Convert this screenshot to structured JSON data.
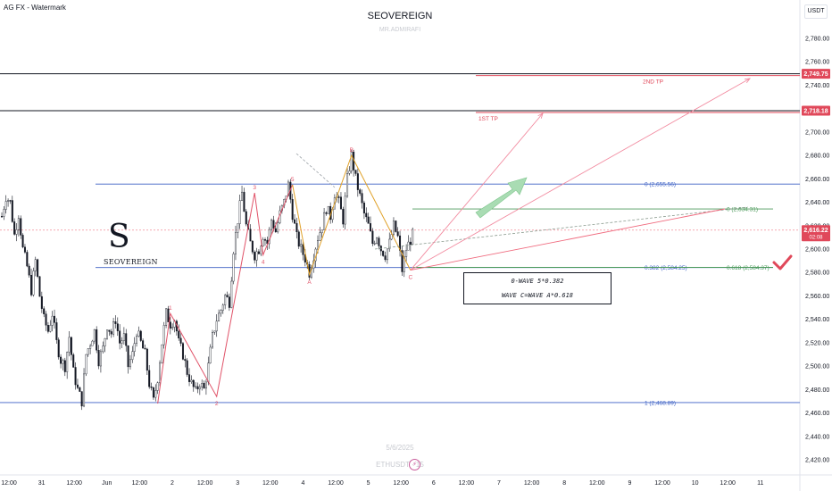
{
  "header": {
    "source": "AG FX - Watermark",
    "title": "SEOVEREIGN",
    "subtitle": "MR.ADMIRAFI",
    "currency": "USDT"
  },
  "watermark": {
    "date": "5/6/2025",
    "symbol": "ETHUSDT · 15"
  },
  "logo": {
    "mark": "S",
    "text": "SEOVEREIGN"
  },
  "note_box": {
    "line1": "0-WAVE 5*0.382",
    "line2": "WAVE C=WAVE A*0.618"
  },
  "colors": {
    "candle": "#131722",
    "blue_level": "#3b5fc4",
    "green_level": "#4c9a5b",
    "red_target": "#e0485a",
    "pink_arrow": "#f28ba0",
    "wave_line": "#e05268",
    "orange_line": "#e0a128"
  },
  "chart_data": {
    "type": "candlestick",
    "y_ticks": [
      "2,780.00",
      "2,760.00",
      "2,740.00",
      "2,720.00",
      "2,700.00",
      "2,680.00",
      "2,660.00",
      "2,640.00",
      "2,620.00",
      "2,600.00",
      "2,580.00",
      "2,560.00",
      "2,540.00",
      "2,520.00",
      "2,500.00",
      "2,480.00",
      "2,460.00",
      "2,440.00",
      "2,420.00"
    ],
    "y_values": [
      2780,
      2760,
      2740,
      2720,
      2700,
      2680,
      2660,
      2640,
      2620,
      2600,
      2580,
      2560,
      2540,
      2520,
      2500,
      2480,
      2460,
      2440,
      2420
    ],
    "x_ticks": [
      {
        "label": "12:00",
        "i": 0
      },
      {
        "label": "31",
        "i": 1
      },
      {
        "label": "12:00",
        "i": 2
      },
      {
        "label": "Jun",
        "i": 3
      },
      {
        "label": "12:00",
        "i": 4
      },
      {
        "label": "2",
        "i": 5
      },
      {
        "label": "12:00",
        "i": 6
      },
      {
        "label": "3",
        "i": 7
      },
      {
        "label": "12:00",
        "i": 8
      },
      {
        "label": "4",
        "i": 9
      },
      {
        "label": "12:00",
        "i": 10
      },
      {
        "label": "5",
        "i": 11
      },
      {
        "label": "12:00",
        "i": 12
      },
      {
        "label": "6",
        "i": 13
      },
      {
        "label": "12:00",
        "i": 14
      },
      {
        "label": "7",
        "i": 15
      },
      {
        "label": "12:00",
        "i": 16
      },
      {
        "label": "8",
        "i": 17
      },
      {
        "label": "12:00",
        "i": 18
      },
      {
        "label": "9",
        "i": 19
      },
      {
        "label": "12:00",
        "i": 20
      },
      {
        "label": "10",
        "i": 21
      },
      {
        "label": "12:00",
        "i": 22
      },
      {
        "label": "11",
        "i": 23
      }
    ],
    "price_badges": [
      {
        "label": "2,749.75",
        "value": 2749.75
      },
      {
        "label": "2,718.18",
        "value": 2718.18
      },
      {
        "label": "2,616.22",
        "value": 2616.22,
        "sub": "02:08"
      }
    ],
    "levels": [
      {
        "label": "0 (2,655.56)",
        "value": 2655.56,
        "kind": "blue"
      },
      {
        "label": "0.382 (2,584.25)",
        "value": 2584.25,
        "kind": "blue"
      },
      {
        "label": "1 (2,468.89)",
        "value": 2468.89,
        "kind": "blue"
      },
      {
        "label": "0 (2,634.31)",
        "value": 2634.31,
        "kind": "green"
      },
      {
        "label": "0.618 (2,584.37)",
        "value": 2584.37,
        "kind": "green"
      }
    ],
    "targets": [
      {
        "label": "1ST TP",
        "value": 2718.18
      },
      {
        "label": "2ND TP",
        "value": 2749.75
      }
    ],
    "wave_labels": [
      "1",
      "2",
      "3",
      "4",
      "5",
      "A",
      "B",
      "C"
    ],
    "series": [
      {
        "t": 0,
        "v": 2628
      },
      {
        "t": 2,
        "v": 2645
      },
      {
        "t": 4,
        "v": 2640
      },
      {
        "t": 6,
        "v": 2612
      },
      {
        "t": 8,
        "v": 2630
      },
      {
        "t": 10,
        "v": 2600
      },
      {
        "t": 12,
        "v": 2585
      },
      {
        "t": 14,
        "v": 2565
      },
      {
        "t": 16,
        "v": 2590
      },
      {
        "t": 18,
        "v": 2560
      },
      {
        "t": 20,
        "v": 2540
      },
      {
        "t": 22,
        "v": 2530
      },
      {
        "t": 24,
        "v": 2545
      },
      {
        "t": 26,
        "v": 2520
      },
      {
        "t": 28,
        "v": 2505
      },
      {
        "t": 30,
        "v": 2500
      },
      {
        "t": 32,
        "v": 2525
      },
      {
        "t": 34,
        "v": 2495
      },
      {
        "t": 36,
        "v": 2480
      },
      {
        "t": 38,
        "v": 2470
      },
      {
        "t": 40,
        "v": 2510
      },
      {
        "t": 42,
        "v": 2520
      },
      {
        "t": 44,
        "v": 2530
      },
      {
        "t": 46,
        "v": 2505
      },
      {
        "t": 48,
        "v": 2515
      },
      {
        "t": 50,
        "v": 2535
      },
      {
        "t": 52,
        "v": 2528
      },
      {
        "t": 54,
        "v": 2540
      },
      {
        "t": 56,
        "v": 2520
      },
      {
        "t": 58,
        "v": 2525
      },
      {
        "t": 60,
        "v": 2500
      },
      {
        "t": 62,
        "v": 2510
      },
      {
        "t": 64,
        "v": 2530
      },
      {
        "t": 66,
        "v": 2520
      },
      {
        "t": 68,
        "v": 2510
      },
      {
        "t": 70,
        "v": 2485
      },
      {
        "t": 72,
        "v": 2470
      },
      {
        "t": 74,
        "v": 2490
      },
      {
        "t": 76,
        "v": 2520
      },
      {
        "t": 78,
        "v": 2545
      },
      {
        "t": 80,
        "v": 2536
      },
      {
        "t": 82,
        "v": 2540
      },
      {
        "t": 84,
        "v": 2520
      },
      {
        "t": 86,
        "v": 2510
      },
      {
        "t": 88,
        "v": 2495
      },
      {
        "t": 90,
        "v": 2485
      },
      {
        "t": 92,
        "v": 2478
      },
      {
        "t": 94,
        "v": 2486
      },
      {
        "t": 96,
        "v": 2480
      },
      {
        "t": 98,
        "v": 2500
      },
      {
        "t": 100,
        "v": 2525
      },
      {
        "t": 102,
        "v": 2540
      },
      {
        "t": 104,
        "v": 2548
      },
      {
        "t": 106,
        "v": 2560
      },
      {
        "t": 108,
        "v": 2555
      },
      {
        "t": 110,
        "v": 2600
      },
      {
        "t": 112,
        "v": 2625
      },
      {
        "t": 114,
        "v": 2648
      },
      {
        "t": 116,
        "v": 2620
      },
      {
        "t": 118,
        "v": 2605
      },
      {
        "t": 120,
        "v": 2595
      },
      {
        "t": 122,
        "v": 2600
      },
      {
        "t": 124,
        "v": 2612
      },
      {
        "t": 126,
        "v": 2605
      },
      {
        "t": 128,
        "v": 2625
      },
      {
        "t": 130,
        "v": 2615
      },
      {
        "t": 132,
        "v": 2630
      },
      {
        "t": 134,
        "v": 2640
      },
      {
        "t": 136,
        "v": 2655
      },
      {
        "t": 138,
        "v": 2630
      },
      {
        "t": 140,
        "v": 2610
      },
      {
        "t": 142,
        "v": 2600
      },
      {
        "t": 144,
        "v": 2592
      },
      {
        "t": 146,
        "v": 2580
      },
      {
        "t": 148,
        "v": 2595
      },
      {
        "t": 150,
        "v": 2610
      },
      {
        "t": 152,
        "v": 2620
      },
      {
        "t": 154,
        "v": 2635
      },
      {
        "t": 156,
        "v": 2628
      },
      {
        "t": 158,
        "v": 2648
      },
      {
        "t": 160,
        "v": 2640
      },
      {
        "t": 162,
        "v": 2625
      },
      {
        "t": 164,
        "v": 2660
      },
      {
        "t": 166,
        "v": 2680
      },
      {
        "t": 168,
        "v": 2660
      },
      {
        "t": 170,
        "v": 2645
      },
      {
        "t": 172,
        "v": 2630
      },
      {
        "t": 174,
        "v": 2620
      },
      {
        "t": 176,
        "v": 2605
      },
      {
        "t": 178,
        "v": 2612
      },
      {
        "t": 180,
        "v": 2600
      },
      {
        "t": 182,
        "v": 2595
      },
      {
        "t": 184,
        "v": 2605
      },
      {
        "t": 186,
        "v": 2620
      },
      {
        "t": 188,
        "v": 2610
      },
      {
        "t": 190,
        "v": 2582
      },
      {
        "t": 192,
        "v": 2600
      },
      {
        "t": 194,
        "v": 2608
      },
      {
        "t": 196,
        "v": 2616
      }
    ]
  }
}
